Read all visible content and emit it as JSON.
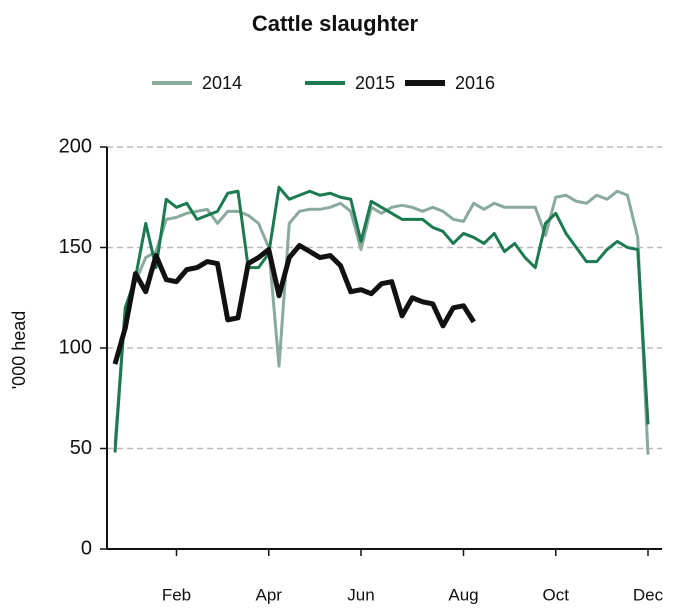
{
  "chart_data": {
    "type": "line",
    "title": "Cattle slaughter",
    "y_label": "'000 head",
    "categories": [
      null,
      null,
      null,
      null,
      null,
      null,
      "Feb",
      null,
      null,
      null,
      null,
      null,
      null,
      null,
      null,
      "Apr",
      null,
      null,
      null,
      null,
      null,
      null,
      null,
      null,
      "Jun",
      null,
      null,
      null,
      null,
      null,
      null,
      null,
      null,
      null,
      "Aug",
      null,
      null,
      null,
      null,
      null,
      null,
      null,
      null,
      "Oct",
      null,
      null,
      null,
      null,
      null,
      null,
      null,
      null,
      "Dec"
    ],
    "series": [
      {
        "name": "2014",
        "color": "#8aaa9c",
        "values": [
          52,
          120,
          133,
          145,
          148,
          164,
          165,
          167,
          168,
          169,
          162,
          168,
          168,
          166,
          162,
          150,
          91,
          162,
          168,
          169,
          169,
          170,
          172,
          168,
          149,
          170,
          167,
          170,
          171,
          170,
          168,
          170,
          168,
          164,
          163,
          172,
          169,
          172,
          170,
          170,
          170,
          170,
          156,
          175,
          176,
          173,
          172,
          176,
          174,
          178,
          176,
          155,
          47
        ]
      },
      {
        "name": "2015",
        "color": "#1c7a50",
        "values": [
          48,
          120,
          135,
          162,
          140,
          174,
          170,
          172,
          164,
          166,
          168,
          177,
          178,
          140,
          140,
          147,
          180,
          174,
          176,
          178,
          176,
          177,
          175,
          174,
          153,
          173,
          170,
          167,
          164,
          164,
          164,
          160,
          158,
          152,
          157,
          155,
          152,
          157,
          148,
          152,
          145,
          140,
          162,
          167,
          157,
          150,
          143,
          143,
          149,
          153,
          150,
          149,
          62
        ]
      },
      {
        "name": "2016",
        "color": "#111111",
        "values": [
          92,
          110,
          137,
          128,
          146,
          134,
          133,
          139,
          140,
          143,
          142,
          114,
          115,
          142,
          145,
          149,
          126,
          145,
          151,
          148,
          145,
          146,
          141,
          128,
          129,
          127,
          132,
          133,
          116,
          125,
          123,
          122,
          111,
          120,
          121,
          113,
          null,
          null,
          null,
          null,
          null,
          null,
          null,
          null,
          null,
          null,
          null,
          null,
          null,
          null,
          null,
          null,
          null
        ]
      }
    ],
    "ylim": [
      0,
      200
    ],
    "yticks": [
      0,
      50,
      100,
      150,
      200
    ],
    "grid": true
  }
}
